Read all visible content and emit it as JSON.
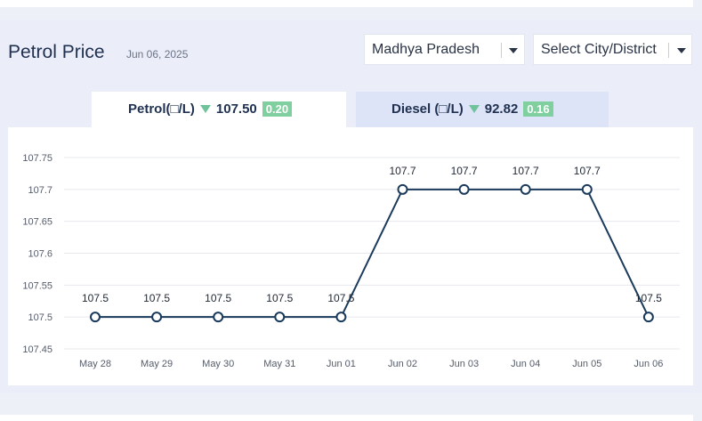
{
  "page": {
    "title": "Petrol Price",
    "date": "Jun 06, 2025"
  },
  "filters": {
    "state": "Madhya Pradesh",
    "city": "Select City/District"
  },
  "tabs": [
    {
      "label": "Petrol(□/L)",
      "price": "107.50",
      "change": "0.20",
      "trend": "down",
      "active": true
    },
    {
      "label": "Diesel (□/L)",
      "price": "92.82",
      "change": "0.16",
      "trend": "down",
      "active": false
    }
  ],
  "colors": {
    "line": "#1a3a5c",
    "badge": "#7fcf9f",
    "trend_down": "#6fc39a",
    "active_tab": "#ffffff",
    "inactive_tab": "#dde4f7"
  },
  "chart_data": {
    "type": "line",
    "categories": [
      "May 28",
      "May 29",
      "May 30",
      "May 31",
      "Jun 01",
      "Jun 02",
      "Jun 03",
      "Jun 04",
      "Jun 05",
      "Jun 06"
    ],
    "values": [
      107.5,
      107.5,
      107.5,
      107.5,
      107.5,
      107.7,
      107.7,
      107.7,
      107.7,
      107.5
    ],
    "data_labels": [
      "107.5",
      "107.5",
      "107.5",
      "107.5",
      "107.5",
      "107.7",
      "107.7",
      "107.7",
      "107.7",
      "107.5"
    ],
    "yticks": [
      "107.75",
      "107.7",
      "107.65",
      "107.6",
      "107.55",
      "107.5",
      "107.45"
    ],
    "ylim": [
      107.45,
      107.75
    ],
    "grid": true
  }
}
